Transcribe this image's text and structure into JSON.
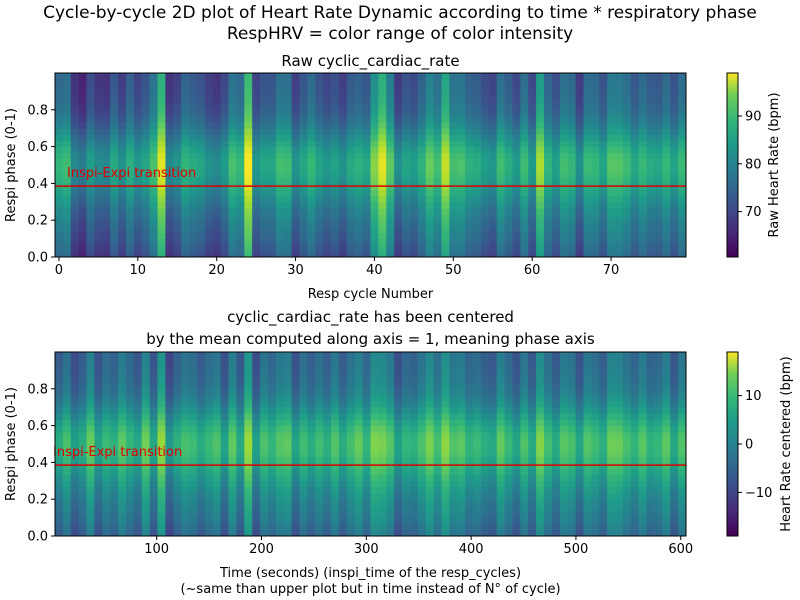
{
  "figure": {
    "suptitle_line1": "Cycle-by-cycle 2D plot of Heart Rate Dynamic according to time * respiratory phase",
    "suptitle_line2": "RespHRV = color range of color intensity"
  },
  "chart_data": [
    {
      "type": "heatmap",
      "title": "Raw cyclic_cardiac_rate",
      "xlabel": "Resp cycle Number",
      "ylabel": "Respi phase (0-1)",
      "xlim": [
        -0.5,
        79.5
      ],
      "ylim": [
        0,
        1
      ],
      "x_ticks": [
        0,
        10,
        20,
        30,
        40,
        50,
        60,
        70
      ],
      "y_ticks": [
        0.0,
        0.2,
        0.4,
        0.6,
        0.8
      ],
      "colormap": "viridis",
      "colorbar": {
        "label": "Raw Heart Rate (bpm)",
        "vmin": 60.5,
        "vmax": 99,
        "ticks": [
          70,
          80,
          90
        ]
      },
      "annotation": {
        "text": "Inspi-Expi transition",
        "y": 0.385,
        "color": "#e00000"
      },
      "column_means_bpm": [
        79.3,
        80.4,
        72.1,
        70.1,
        75.5,
        72.6,
        72.2,
        77.2,
        73.5,
        78.1,
        74.4,
        76.6,
        81.2,
        90.9,
        72.1,
        74.0,
        79.0,
        77.4,
        76.5,
        73.6,
        72.4,
        75.0,
        81.1,
        79.5,
        92.6,
        74.3,
        76.6,
        76.6,
        80.8,
        80.5,
        73.7,
        76.7,
        79.8,
        76.4,
        74.4,
        76.0,
        73.6,
        77.3,
        78.5,
        76.8,
        85.5,
        90.8,
        82.7,
        73.1,
        76.4,
        75.3,
        78.5,
        83.5,
        80.7,
        89.1,
        80.9,
        81.4,
        78.4,
        77.6,
        75.5,
        74.2,
        80.6,
        77.9,
        74.9,
        80.4,
        74.9,
        87.5,
        79.0,
        75.7,
        80.7,
        79.6,
        73.2,
        80.0,
        79.5,
        76.4,
        82.1,
        82.0,
        80.4,
        76.9,
        79.8,
        77.5,
        76.9,
        79.7,
        76.2,
        80.1
      ],
      "phase_profile": [
        -6.4,
        -5.4,
        -4.5,
        -3.7,
        -3.0,
        -2.3,
        -1.5,
        -0.6,
        0.5,
        1.6,
        2.9,
        4.1,
        5.2,
        6.1,
        6.6,
        6.6,
        6.0,
        4.7,
        3.1,
        1.4,
        -0.3,
        -1.8,
        -3.0,
        -4.0,
        -4.7,
        -5.2,
        -5.5,
        -5.7,
        -5.9,
        -6.0
      ]
    },
    {
      "type": "heatmap",
      "title_line1": "cyclic_cardiac_rate has been centered",
      "title_line2": "by the mean computed along axis = 1, meaning phase axis",
      "xlabel_line1": "Time (seconds) (inspi_time of the resp_cycles)",
      "xlabel_line2": "(~same than upper plot but in time instead of N° of cycle)",
      "ylabel": "Respi phase (0-1)",
      "xlim": [
        3,
        605
      ],
      "ylim": [
        0,
        1
      ],
      "x_ticks": [
        100,
        200,
        300,
        400,
        500,
        600
      ],
      "y_ticks": [
        0.0,
        0.2,
        0.4,
        0.6,
        0.8
      ],
      "colormap": "viridis",
      "colorbar": {
        "label": "Heart Rate centered (bpm)",
        "vmin": -19,
        "vmax": 19,
        "ticks": [
          -10,
          0,
          10
        ]
      },
      "annotation": {
        "text": "Inspi-Expi transition",
        "y": 0.385,
        "color": "#e00000"
      },
      "column_offsets_bpm": [
        -2.1,
        1.3,
        -4.2,
        -2.0,
        3.5,
        -3.4,
        0.2,
        -1.5,
        2.6,
        -0.4,
        -2.8,
        4.1,
        -3.0,
        6.5,
        -5.2,
        -1.4,
        1.2,
        0.4,
        -2.3,
        0.1,
        1.8,
        -3.7,
        3.0,
        -2.6,
        6.8,
        -4.0,
        1.6,
        -0.6,
        2.2,
        2.9,
        -3.5,
        0.7,
        -1.9,
        0.8,
        -1.6,
        2.0,
        -2.2,
        1.1,
        3.4,
        -0.7,
        5.1,
        4.6,
        2.3,
        -3.9,
        -0.5,
        -1.3,
        1.5,
        4.8,
        1.0,
        5.9,
        1.9,
        2.7,
        -0.9,
        0.3,
        -1.8,
        -2.7,
        3.2,
        0.0,
        -3.1,
        1.7,
        -2.5,
        5.4,
        0.9,
        -2.4,
        2.4,
        1.4,
        -3.3,
        2.1,
        0.6,
        -1.7,
        3.9,
        3.6,
        1.3,
        -0.8,
        2.5,
        -1.1,
        -0.2,
        2.8,
        -2.9,
        1.9
      ]
    }
  ]
}
